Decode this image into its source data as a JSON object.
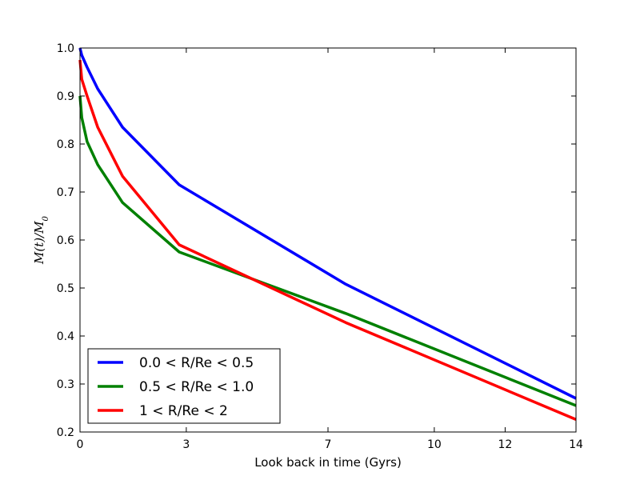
{
  "chart_data": {
    "type": "line",
    "title": "",
    "xlabel": "Look back in time (Gyrs)",
    "ylabel": "M(t)/M",
    "ylabel_sub": "0",
    "xlim": [
      0,
      14
    ],
    "ylim": [
      0.2,
      1.0
    ],
    "xticks": [
      0,
      3,
      7,
      10,
      12,
      14
    ],
    "yticks": [
      0.2,
      0.3,
      0.4,
      0.5,
      0.6,
      0.7,
      0.8,
      0.9,
      1.0
    ],
    "ytick_labels": [
      "0.2",
      "0.3",
      "0.4",
      "0.5",
      "0.6",
      "0.7",
      "0.8",
      "0.9",
      "1.0"
    ],
    "grid": false,
    "legend_position": "lower-left",
    "series": [
      {
        "name": "0.0 < R/Re < 0.5",
        "color": "#0000ff",
        "x": [
          0,
          0.05,
          0.2,
          0.5,
          1.2,
          2.8,
          7.5,
          14
        ],
        "y": [
          1.0,
          0.985,
          0.96,
          0.915,
          0.835,
          0.715,
          0.508,
          0.27
        ]
      },
      {
        "name": "0.5 < R/Re < 1.0",
        "color": "#008000",
        "x": [
          0,
          0.05,
          0.2,
          0.5,
          1.2,
          2.8,
          7.5,
          14
        ],
        "y": [
          0.9,
          0.855,
          0.805,
          0.757,
          0.678,
          0.575,
          0.447,
          0.255
        ]
      },
      {
        "name": "1 < R/Re < 2",
        "color": "#ff0000",
        "x": [
          0,
          0.05,
          0.2,
          0.5,
          1.2,
          2.8,
          7.5,
          14
        ],
        "y": [
          0.975,
          0.935,
          0.9,
          0.835,
          0.733,
          0.59,
          0.428,
          0.226
        ]
      }
    ]
  }
}
